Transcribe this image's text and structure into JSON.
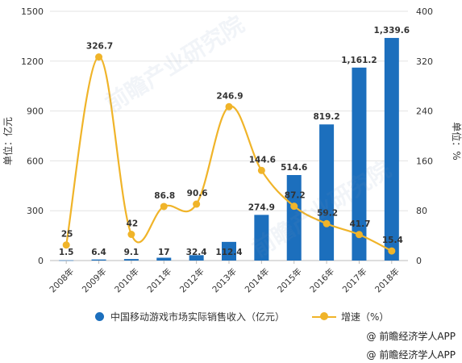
{
  "chart_data": {
    "type": "bar+line",
    "categories": [
      "2008年",
      "2009年",
      "2010年",
      "2011年",
      "2012年",
      "2013年",
      "2014年",
      "2015年",
      "2016年",
      "2017年",
      "2018年"
    ],
    "series": [
      {
        "name": "中国移动游戏市场实际销售收入（亿元）",
        "type": "bar",
        "axis": "left",
        "values": [
          1.5,
          6.4,
          9.1,
          17,
          32.4,
          112.4,
          274.9,
          514.6,
          819.2,
          1161.2,
          1339.6
        ],
        "labels": [
          "1.5",
          "6.4",
          "9.1",
          "17",
          "32.4",
          "112.4",
          "274.9",
          "514.6",
          "819.2",
          "1,161.2",
          "1,339.6"
        ],
        "color": "#1c6fbd"
      },
      {
        "name": "增速（%）",
        "type": "line",
        "axis": "right",
        "values": [
          25,
          326.7,
          42,
          86.8,
          90.6,
          246.9,
          144.6,
          87.2,
          59.2,
          41.7,
          15.4
        ],
        "labels": [
          "25",
          "326.7",
          "42",
          "86.8",
          "90.6",
          "246.9",
          "144.6",
          "87.2",
          "59.2",
          "41.7",
          "15.4"
        ],
        "color": "#f0b429"
      }
    ],
    "ylabel_left": "单位：亿元",
    "ylabel_right": "单位：%",
    "ylim_left": [
      0,
      1500
    ],
    "ylim_right": [
      0,
      400
    ],
    "yticks_left": [
      "0",
      "300",
      "600",
      "900",
      "1200",
      "1500"
    ],
    "yticks_right": [
      "0",
      "80",
      "160",
      "240",
      "320",
      "400"
    ],
    "grid": true,
    "legend_position": "bottom"
  },
  "legend": {
    "bar_label": "中国移动游戏市场实际销售收入（亿元）",
    "line_label": "增速（%）"
  },
  "source": [
    "@ 前瞻经济学人APP",
    "@ 前瞻经济学人APP"
  ],
  "watermark": "前瞻产业研究院"
}
